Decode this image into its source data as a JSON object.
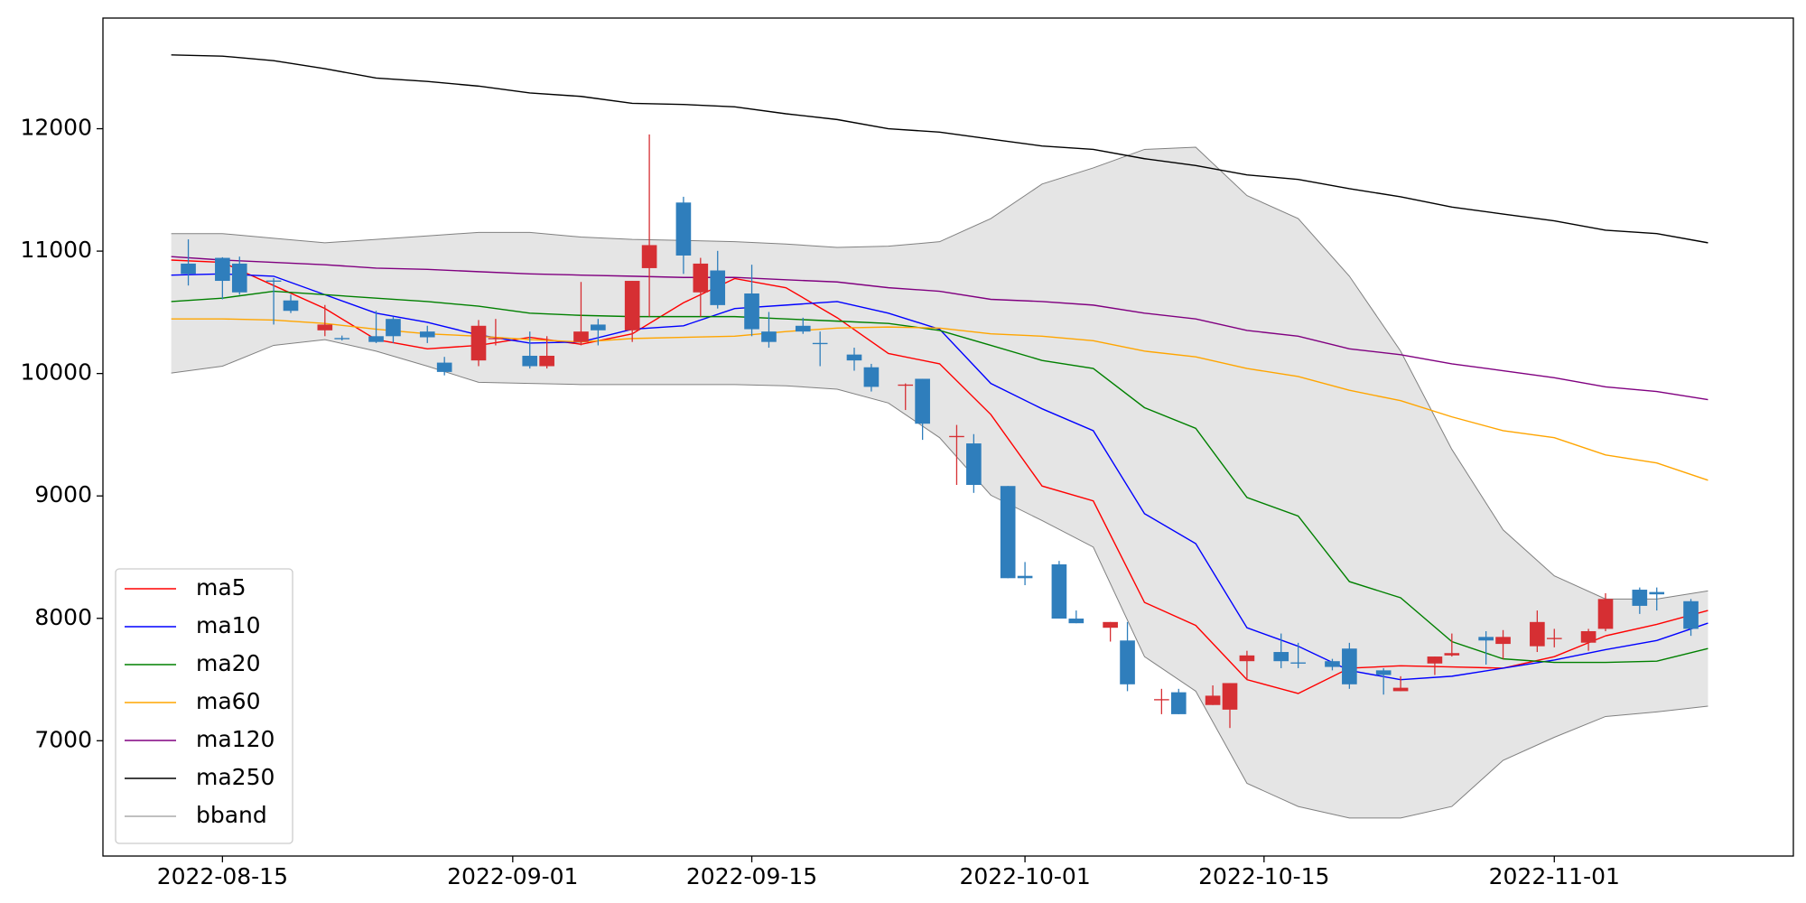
{
  "chart_data": {
    "type": "candlestick",
    "candles": {
      "x": [
        "2022-08-13",
        "2022-08-15",
        "2022-08-16",
        "2022-08-18",
        "2022-08-19",
        "2022-08-21",
        "2022-08-22",
        "2022-08-24",
        "2022-08-25",
        "2022-08-27",
        "2022-08-28",
        "2022-08-30",
        "2022-08-31",
        "2022-09-02",
        "2022-09-03",
        "2022-09-05",
        "2022-09-06",
        "2022-09-08",
        "2022-09-09",
        "2022-09-11",
        "2022-09-12",
        "2022-09-13",
        "2022-09-15",
        "2022-09-16",
        "2022-09-18",
        "2022-09-19",
        "2022-09-21",
        "2022-09-22",
        "2022-09-24",
        "2022-09-25",
        "2022-09-27",
        "2022-09-28",
        "2022-09-30",
        "2022-10-01",
        "2022-10-03",
        "2022-10-04",
        "2022-10-06",
        "2022-10-07",
        "2022-10-09",
        "2022-10-10",
        "2022-10-12",
        "2022-10-13",
        "2022-10-14",
        "2022-10-16",
        "2022-10-17",
        "2022-10-19",
        "2022-10-20",
        "2022-10-22",
        "2022-10-23",
        "2022-10-25",
        "2022-10-26",
        "2022-10-28",
        "2022-10-29",
        "2022-10-31",
        "2022-11-01",
        "2022-11-03",
        "2022-11-04",
        "2022-11-06",
        "2022-11-07",
        "2022-11-09"
      ],
      "open": [
        10898,
        10945,
        10898,
        10760,
        10597,
        10353,
        10290,
        10305,
        10446,
        10343,
        10089,
        10107,
        10280,
        10145,
        10060,
        10258,
        10400,
        10353,
        10861,
        11397,
        10663,
        10842,
        10654,
        10343,
        10390,
        10250,
        10155,
        10051,
        9900,
        9957,
        9480,
        9429,
        9081,
        8347,
        8441,
        7998,
        7923,
        7819,
        7330,
        7396,
        7292,
        7254,
        7650,
        7725,
        7640,
        7650,
        7753,
        7575,
        7405,
        7631,
        7697,
        7848,
        7791,
        7772,
        7830,
        7801,
        7914,
        8234,
        8215,
        8140
      ],
      "high": [
        11096,
        10950,
        10955,
        10780,
        10644,
        10560,
        10310,
        10512,
        10465,
        10390,
        10136,
        10437,
        10446,
        10343,
        10305,
        10748,
        10446,
        10757,
        11953,
        11444,
        10945,
        11002,
        10889,
        10503,
        10456,
        10343,
        10211,
        10079,
        9919,
        9957,
        9580,
        9505,
        9081,
        8460,
        8469,
        8064,
        7970,
        7970,
        7424,
        7424,
        7452,
        7471,
        7735,
        7876,
        7800,
        7669,
        7800,
        7593,
        7527,
        7688,
        7876,
        7895,
        7904,
        8064,
        7914,
        7914,
        8205,
        8252,
        8252,
        8158
      ],
      "low": [
        10719,
        10606,
        10644,
        10400,
        10494,
        10305,
        10270,
        10249,
        10249,
        10249,
        9985,
        10060,
        10230,
        10041,
        10041,
        10230,
        10230,
        10258,
        10465,
        10814,
        10465,
        10531,
        10305,
        10211,
        10324,
        10060,
        10023,
        9853,
        9702,
        9458,
        9090,
        9025,
        8328,
        8271,
        7998,
        7960,
        7810,
        7405,
        7217,
        7217,
        7292,
        7104,
        7499,
        7593,
        7593,
        7575,
        7424,
        7377,
        7405,
        7537,
        7688,
        7622,
        7669,
        7725,
        7763,
        7735,
        7895,
        8036,
        8064,
        7857
      ],
      "close": [
        10814,
        10757,
        10663,
        10750,
        10512,
        10400,
        10280,
        10258,
        10305,
        10296,
        10013,
        10390,
        10290,
        10060,
        10145,
        10343,
        10353,
        10757,
        11049,
        10964,
        10898,
        10559,
        10362,
        10258,
        10343,
        10240,
        10107,
        9891,
        9910,
        9590,
        9490,
        9090,
        8328,
        8328,
        7998,
        7960,
        7970,
        7461,
        7340,
        7217,
        7368,
        7471,
        7697,
        7650,
        7630,
        7603,
        7461,
        7537,
        7433,
        7688,
        7716,
        7819,
        7848,
        7970,
        7840,
        7895,
        8158,
        8102,
        8196,
        7914
      ],
      "up_color": "#d62f33",
      "down_color": "#2f7ebc"
    },
    "x": [
      "2022-08-12",
      "2022-08-15",
      "2022-08-18",
      "2022-08-21",
      "2022-08-24",
      "2022-08-27",
      "2022-08-30",
      "2022-09-02",
      "2022-09-05",
      "2022-09-08",
      "2022-09-11",
      "2022-09-14",
      "2022-09-17",
      "2022-09-20",
      "2022-09-23",
      "2022-09-26",
      "2022-09-29",
      "2022-10-02",
      "2022-10-05",
      "2022-10-08",
      "2022-10-11",
      "2022-10-14",
      "2022-10-17",
      "2022-10-20",
      "2022-10-23",
      "2022-10-26",
      "2022-10-29",
      "2022-11-01",
      "2022-11-04",
      "2022-11-07",
      "2022-11-10"
    ],
    "series": [
      {
        "name": "ma5",
        "color": "#ff0000",
        "values": [
          10927,
          10908,
          10719,
          10531,
          10277,
          10202,
          10230,
          10296,
          10239,
          10324,
          10578,
          10776,
          10701,
          10456,
          10164,
          10079,
          9665,
          9081,
          8959,
          8130,
          7942,
          7499,
          7386,
          7593,
          7612,
          7603,
          7593,
          7687,
          7857,
          7951,
          8064
        ]
      },
      {
        "name": "ma10",
        "color": "#0000ff",
        "values": [
          10804,
          10814,
          10795,
          10644,
          10493,
          10418,
          10315,
          10249,
          10258,
          10362,
          10390,
          10531,
          10559,
          10588,
          10493,
          10362,
          9919,
          9712,
          9533,
          8855,
          8610,
          7923,
          7772,
          7574,
          7499,
          7527,
          7593,
          7659,
          7744,
          7819,
          7961
        ]
      },
      {
        "name": "ma20",
        "color": "#008000",
        "values": [
          10588,
          10616,
          10672,
          10644,
          10616,
          10588,
          10550,
          10493,
          10475,
          10465,
          10465,
          10465,
          10446,
          10428,
          10409,
          10352,
          10230,
          10107,
          10041,
          9721,
          9552,
          8987,
          8836,
          8300,
          8168,
          7810,
          7669,
          7640,
          7640,
          7650,
          7753
        ]
      },
      {
        "name": "ma60",
        "color": "#ffa500",
        "values": [
          10446,
          10446,
          10437,
          10409,
          10362,
          10324,
          10305,
          10277,
          10258,
          10286,
          10296,
          10305,
          10343,
          10371,
          10380,
          10371,
          10324,
          10305,
          10268,
          10183,
          10136,
          10041,
          9976,
          9863,
          9778,
          9646,
          9533,
          9476,
          9335,
          9269,
          9128
        ]
      },
      {
        "name": "ma120",
        "color": "#800080",
        "values": [
          10955,
          10927,
          10908,
          10889,
          10861,
          10851,
          10832,
          10814,
          10804,
          10795,
          10785,
          10785,
          10766,
          10748,
          10701,
          10672,
          10606,
          10588,
          10559,
          10493,
          10446,
          10352,
          10305,
          10202,
          10154,
          10079,
          10023,
          9966,
          9891,
          9853,
          9787
        ]
      },
      {
        "name": "ma250",
        "color": "#000000",
        "values": [
          12603,
          12593,
          12556,
          12490,
          12414,
          12386,
          12348,
          12292,
          12264,
          12207,
          12198,
          12179,
          12122,
          12075,
          12000,
          11972,
          11915,
          11859,
          11831,
          11755,
          11699,
          11623,
          11586,
          11510,
          11444,
          11360,
          11303,
          11247,
          11171,
          11143,
          11068
        ]
      }
    ],
    "band": {
      "name": "bband",
      "color": "#808080",
      "fill_color": "#e5e5e5",
      "upper": [
        11143,
        11143,
        11105,
        11068,
        11096,
        11124,
        11153,
        11153,
        11115,
        11096,
        11087,
        11077,
        11058,
        11030,
        11040,
        11077,
        11266,
        11548,
        11680,
        11831,
        11849,
        11454,
        11266,
        10795,
        10183,
        9380,
        8723,
        8347,
        8158,
        8158,
        8224
      ],
      "lower": [
        10004,
        10060,
        10230,
        10277,
        10183,
        10060,
        9928,
        9919,
        9910,
        9910,
        9910,
        9910,
        9900,
        9872,
        9759,
        9476,
        9006,
        8799,
        8582,
        7687,
        7405,
        6652,
        6463,
        6369,
        6369,
        6463,
        6840,
        7028,
        7198,
        7236,
        7283
      ]
    },
    "xlim": [
      "2022-08-08",
      "2022-11-15"
    ],
    "xticks": [
      "2022-08-15",
      "2022-09-01",
      "2022-09-15",
      "2022-10-01",
      "2022-10-15",
      "2022-11-01"
    ],
    "ylim": [
      6058,
      12904
    ],
    "yticks": [
      7000,
      8000,
      9000,
      10000,
      11000,
      12000
    ],
    "legend": "lower left"
  }
}
